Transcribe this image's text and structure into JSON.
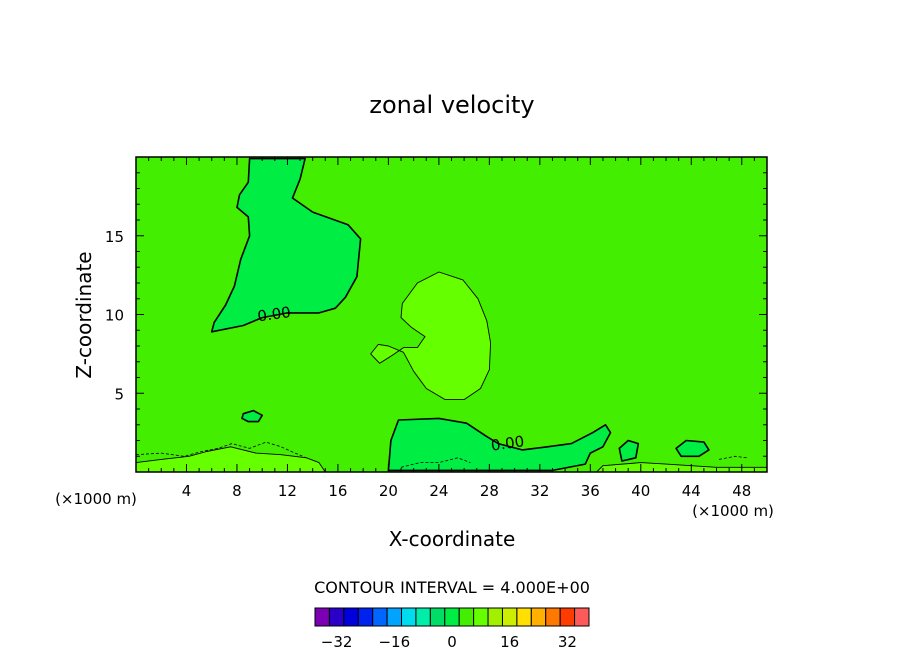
{
  "chart_data": {
    "type": "heatmap",
    "title": "zonal velocity",
    "xlabel": "X-coordinate",
    "ylabel": "Z-coordinate",
    "x_unit_left": "(×1000 m)",
    "x_unit_right": "(×1000 m)",
    "xlim": [
      0,
      50
    ],
    "ylim": [
      0,
      20
    ],
    "x_ticks": [
      4,
      8,
      12,
      16,
      20,
      24,
      28,
      32,
      36,
      40,
      44,
      48
    ],
    "y_ticks": [
      5,
      10,
      15
    ],
    "contour_interval_label": "CONTOUR INTERVAL = 4.000E+00",
    "contour_interval": 4,
    "contour_labels": [
      {
        "text": "0.00",
        "x": 11.0,
        "z": 9.7
      },
      {
        "text": "0.00",
        "x": 29.5,
        "z": 1.5
      }
    ],
    "field": {
      "background": 2,
      "regions": [
        {
          "name": "upper negative lobe",
          "value": -2,
          "color": "#00ee44",
          "outline": [
            [
              9.0,
              19.9
            ],
            [
              13.4,
              19.9
            ],
            [
              13.0,
              18.6
            ],
            [
              12.4,
              17.4
            ],
            [
              14.0,
              16.5
            ],
            [
              16.8,
              15.7
            ],
            [
              17.8,
              14.8
            ],
            [
              17.5,
              12.4
            ],
            [
              16.6,
              11.1
            ],
            [
              15.8,
              10.4
            ],
            [
              14.5,
              10.1
            ],
            [
              12.0,
              10.1
            ],
            [
              10.0,
              9.8
            ],
            [
              8.5,
              9.3
            ],
            [
              6.0,
              8.9
            ],
            [
              6.2,
              9.5
            ],
            [
              7.1,
              10.6
            ],
            [
              7.8,
              11.8
            ],
            [
              8.3,
              13.5
            ],
            [
              9.0,
              15.0
            ],
            [
              8.9,
              16.2
            ],
            [
              8.0,
              16.8
            ],
            [
              8.2,
              17.6
            ],
            [
              8.9,
              18.4
            ],
            [
              9.0,
              19.9
            ]
          ]
        },
        {
          "name": "small negative blob",
          "value": -2,
          "color": "#00ee44",
          "outline": [
            [
              8.5,
              3.7
            ],
            [
              9.3,
              3.9
            ],
            [
              10.0,
              3.6
            ],
            [
              9.7,
              3.2
            ],
            [
              8.9,
              3.2
            ],
            [
              8.4,
              3.4
            ],
            [
              8.5,
              3.7
            ]
          ]
        },
        {
          "name": "lower negative patch",
          "value": -2,
          "color": "#00ee44",
          "outline": [
            [
              20.0,
              0.1
            ],
            [
              20.2,
              2.0
            ],
            [
              20.8,
              3.3
            ],
            [
              24.0,
              3.4
            ],
            [
              26.2,
              3.1
            ],
            [
              27.7,
              2.3
            ],
            [
              28.7,
              1.8
            ],
            [
              30.6,
              1.4
            ],
            [
              32.6,
              1.6
            ],
            [
              34.5,
              1.8
            ],
            [
              36.2,
              2.5
            ],
            [
              37.2,
              3.0
            ],
            [
              37.6,
              2.5
            ],
            [
              37.0,
              1.6
            ],
            [
              36.0,
              1.2
            ],
            [
              35.6,
              0.5
            ],
            [
              33.0,
              0.1
            ],
            [
              20.0,
              0.1
            ]
          ]
        },
        {
          "name": "central positive lobe",
          "value": 6,
          "color": "#66ff00",
          "outline": [
            [
              24.0,
              12.7
            ],
            [
              22.3,
              12.0
            ],
            [
              21.1,
              10.7
            ],
            [
              21.0,
              9.8
            ],
            [
              21.8,
              9.2
            ],
            [
              22.9,
              8.6
            ],
            [
              22.3,
              7.9
            ],
            [
              21.2,
              7.9
            ],
            [
              20.3,
              7.4
            ],
            [
              19.3,
              6.9
            ],
            [
              18.6,
              7.5
            ],
            [
              19.2,
              8.1
            ],
            [
              20.0,
              8.0
            ],
            [
              21.2,
              7.6
            ],
            [
              22.0,
              6.4
            ],
            [
              23.0,
              5.3
            ],
            [
              24.5,
              4.6
            ],
            [
              26.0,
              4.6
            ],
            [
              27.3,
              5.3
            ],
            [
              28.0,
              6.5
            ],
            [
              28.1,
              8.2
            ],
            [
              27.8,
              9.6
            ],
            [
              27.1,
              11.0
            ],
            [
              25.9,
              12.2
            ],
            [
              24.0,
              12.7
            ]
          ]
        },
        {
          "name": "right negative blob",
          "value": -2,
          "color": "#00ee44",
          "outline": [
            [
              38.3,
              1.5
            ],
            [
              39.0,
              2.0
            ],
            [
              39.8,
              1.8
            ],
            [
              39.6,
              0.9
            ],
            [
              38.5,
              0.7
            ],
            [
              38.3,
              1.5
            ]
          ]
        },
        {
          "name": "far right negative blob",
          "value": -2,
          "color": "#00ee44",
          "outline": [
            [
              42.8,
              1.5
            ],
            [
              43.6,
              2.0
            ],
            [
              45.0,
              1.9
            ],
            [
              45.4,
              1.4
            ],
            [
              44.6,
              1.0
            ],
            [
              43.2,
              1.0
            ],
            [
              42.8,
              1.5
            ]
          ]
        },
        {
          "name": "near-surface positive band left",
          "value": 6,
          "color": "#66ff00",
          "outline": [
            [
              0.0,
              0.0
            ],
            [
              0.0,
              0.6
            ],
            [
              2.0,
              0.8
            ],
            [
              4.2,
              1.0
            ],
            [
              5.6,
              1.3
            ],
            [
              7.5,
              1.6
            ],
            [
              9.5,
              1.2
            ],
            [
              11.5,
              1.1
            ],
            [
              13.5,
              0.9
            ],
            [
              14.5,
              0.6
            ],
            [
              15.0,
              0.0
            ],
            [
              0.0,
              0.0
            ]
          ]
        },
        {
          "name": "near-surface positive band right",
          "value": 6,
          "color": "#66ff00",
          "outline": [
            [
              36.5,
              0.0
            ],
            [
              37.0,
              0.4
            ],
            [
              40.0,
              0.6
            ],
            [
              42.0,
              0.5
            ],
            [
              46.0,
              0.3
            ],
            [
              50.0,
              0.3
            ],
            [
              50.0,
              0.0
            ],
            [
              36.5,
              0.0
            ]
          ]
        }
      ],
      "thin_contours": [
        [
          [
            0.0,
            1.1
          ],
          [
            2.0,
            1.2
          ],
          [
            3.8,
            1.0
          ],
          [
            5.2,
            1.3
          ],
          [
            6.5,
            1.5
          ],
          [
            7.6,
            1.8
          ],
          [
            9.0,
            1.5
          ],
          [
            10.3,
            1.9
          ],
          [
            11.5,
            1.6
          ],
          [
            12.6,
            1.2
          ],
          [
            13.5,
            0.9
          ]
        ],
        [
          [
            21.0,
            0.3
          ],
          [
            22.5,
            0.6
          ],
          [
            24.0,
            0.6
          ],
          [
            25.5,
            0.9
          ],
          [
            26.5,
            0.6
          ]
        ],
        [
          [
            46.2,
            0.8
          ],
          [
            47.5,
            1.0
          ],
          [
            48.4,
            0.9
          ]
        ]
      ]
    },
    "colorbar": {
      "ticks": [
        -32,
        -16,
        0,
        16,
        32
      ],
      "bins": [
        -38,
        -34,
        -30,
        -26,
        -22,
        -18,
        -14,
        -10,
        -6,
        -2,
        2,
        6,
        10,
        14,
        18,
        22,
        26,
        30,
        34,
        38
      ],
      "colors": [
        "#7b00b4",
        "#2a00c8",
        "#0000dc",
        "#0022ee",
        "#0066ff",
        "#00a4ff",
        "#00dcee",
        "#00eeaa",
        "#00dd66",
        "#00ee44",
        "#44ee00",
        "#66ff00",
        "#a0f000",
        "#ccee00",
        "#ffe000",
        "#ffb000",
        "#ff7800",
        "#ff3c00",
        "#ff5a5a",
        "#ff9a9a"
      ]
    },
    "colors": {
      "background_field": "#44ee00",
      "negative": "#00ee44",
      "positive": "#66ff00"
    }
  }
}
